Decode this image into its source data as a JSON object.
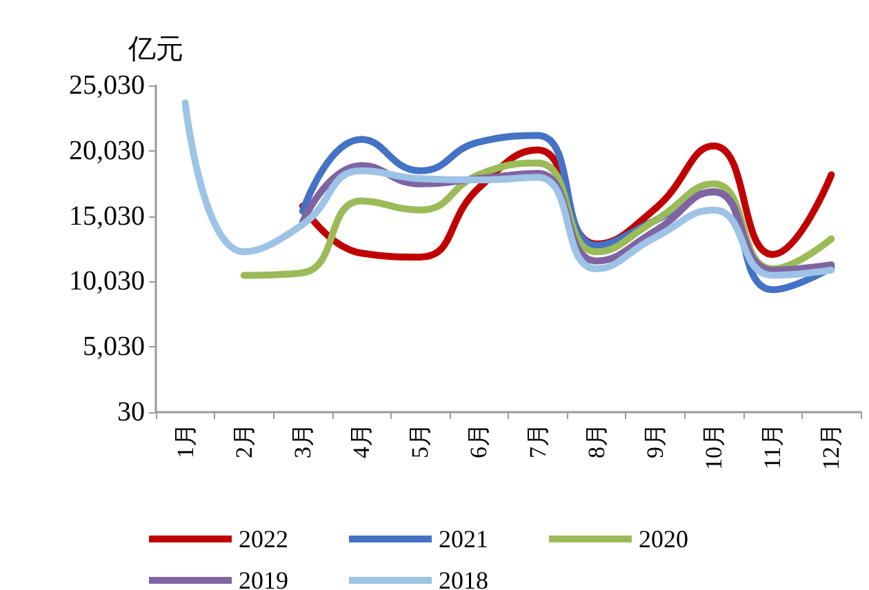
{
  "chart_data": {
    "type": "line",
    "ylabel": "亿元",
    "categories": [
      "1月",
      "2月",
      "3月",
      "4月",
      "5月",
      "6月",
      "7月",
      "8月",
      "9月",
      "10月",
      "11月",
      "12月"
    ],
    "series": [
      {
        "name": "2022",
        "color": "#c00000",
        "values": [
          null,
          null,
          15800,
          12200,
          11900,
          17200,
          20100,
          12900,
          15600,
          20400,
          12100,
          18200
        ]
      },
      {
        "name": "2021",
        "color": "#4472c4",
        "values": [
          null,
          null,
          15400,
          20900,
          18500,
          20700,
          21200,
          12800,
          14700,
          16900,
          9400,
          11100
        ]
      },
      {
        "name": "2020",
        "color": "#9bbb59",
        "values": [
          null,
          10500,
          10700,
          16200,
          15500,
          18200,
          19100,
          12300,
          14700,
          17500,
          11000,
          13300
        ]
      },
      {
        "name": "2019",
        "color": "#8064a2",
        "values": [
          null,
          null,
          14600,
          18900,
          17500,
          17900,
          18300,
          11600,
          13900,
          16900,
          10900,
          11300
        ]
      },
      {
        "name": "2018",
        "color": "#9dc3e6",
        "values": [
          23700,
          12300,
          14400,
          18500,
          17900,
          17800,
          18000,
          11000,
          13400,
          15500,
          10500,
          10900
        ]
      }
    ],
    "ylim": [
      30,
      25030
    ],
    "yticks": [
      30,
      {
        "value": 5030,
        "label": "5,030"
      },
      {
        "value": 10030,
        "label": "10,030"
      },
      {
        "value": 15030,
        "label": "15,030"
      },
      {
        "value": 20030,
        "label": "20,030"
      },
      {
        "value": 25030,
        "label": "25,030"
      }
    ],
    "grid": false,
    "legend": "bottom",
    "marker": "none",
    "line_style": "solid"
  }
}
